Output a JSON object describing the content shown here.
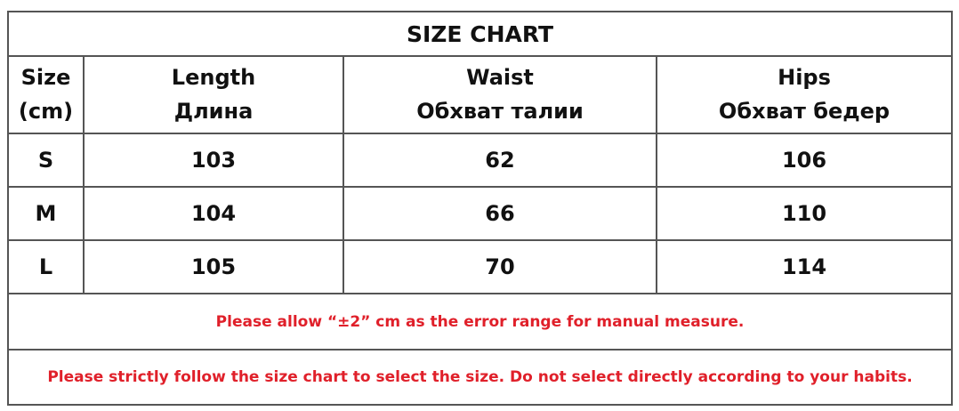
{
  "title": "SIZE CHART",
  "headers": [
    {
      "line1": "Size",
      "line2": "(cm)"
    },
    {
      "line1": "Length",
      "line2": "Длина"
    },
    {
      "line1": "Waist",
      "line2": "Обхват талии"
    },
    {
      "line1": "Hips",
      "line2": "Обхват бедер"
    }
  ],
  "rows": [
    [
      "S",
      "103",
      "62",
      "106"
    ],
    [
      "M",
      "104",
      "66",
      "110"
    ],
    [
      "L",
      "105",
      "70",
      "114"
    ]
  ],
  "notes": [
    "Please allow “±2”  cm as the error range for manual measure.",
    "Please strictly follow the size chart  to select the size. Do not select directly according to your habits."
  ],
  "colors": {
    "note_text": "#e0202a",
    "border": "#555555"
  }
}
